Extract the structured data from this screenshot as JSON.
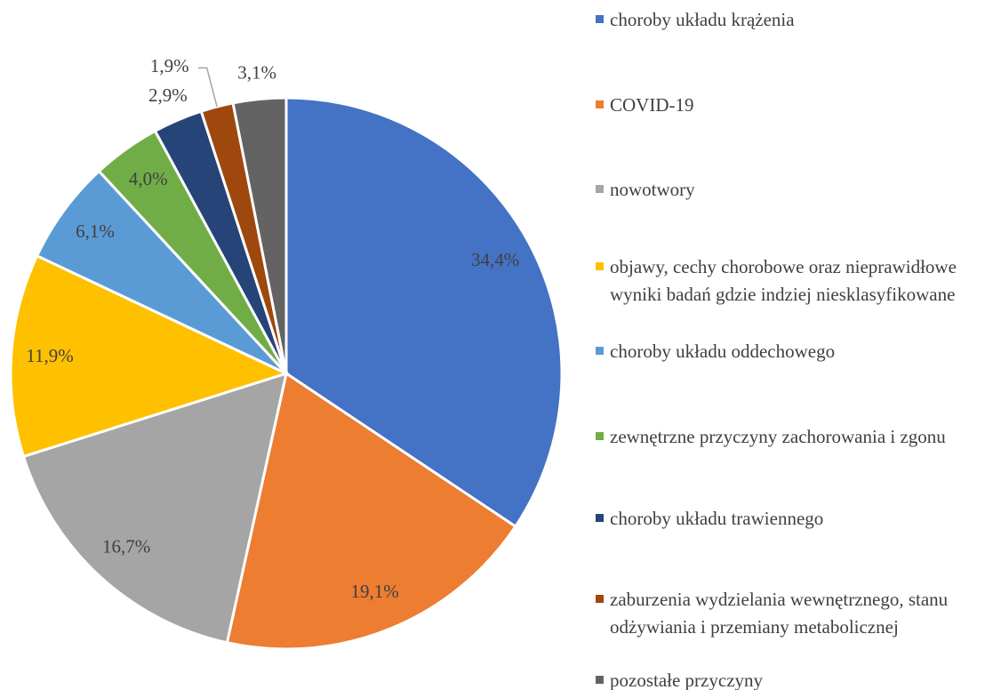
{
  "chart_data": {
    "type": "pie",
    "categories": [
      "choroby układu krążenia",
      "COVID-19",
      "nowotwory",
      "objawy, cechy chorobowe oraz nieprawidłowe wyniki badań gdzie indziej niesklasyfikowane",
      "choroby układu oddechowego",
      "zewnętrzne przyczyny zachorowania i zgonu",
      "choroby układu trawiennego",
      "zaburzenia wydzielania wewnętrznego, stanu odżywiania i przemiany metabolicznej",
      "pozostałe przyczyny"
    ],
    "values": [
      34.4,
      19.1,
      16.7,
      11.9,
      6.1,
      4.0,
      2.9,
      1.9,
      3.1
    ],
    "value_labels": [
      "34,4%",
      "19,1%",
      "16,7%",
      "11,9%",
      "6,1%",
      "4,0%",
      "2,9%",
      "1,9%",
      "3,1%"
    ],
    "colors": [
      "#4472c4",
      "#ed7d31",
      "#a5a5a5",
      "#ffc000",
      "#5b9bd5",
      "#70ad47",
      "#264478",
      "#9e480e",
      "#636363"
    ],
    "legend": "right"
  }
}
